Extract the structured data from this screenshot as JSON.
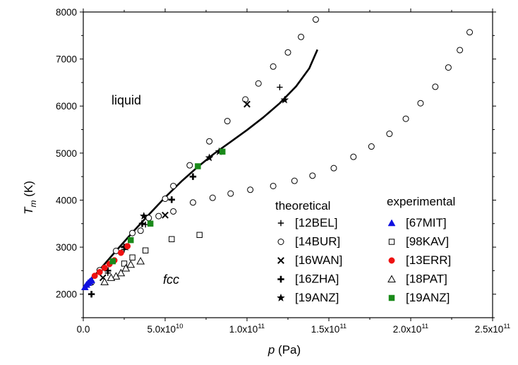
{
  "chart_data": {
    "type": "scatter",
    "xlabel_var": "p",
    "xlabel_unit": " (Pa)",
    "ylabel_var": "T",
    "ylabel_sub": "m",
    "ylabel_unit": " (K)",
    "xlim": [
      0,
      250000000000.0
    ],
    "ylim": [
      1500,
      8000
    ],
    "x_ticks": [
      {
        "v": 0,
        "label": "0.0"
      },
      {
        "v": 50000000000.0,
        "label": "5.0x10",
        "exp": "10"
      },
      {
        "v": 100000000000.0,
        "label": "1.0x10",
        "exp": "11"
      },
      {
        "v": 150000000000.0,
        "label": "1.5x10",
        "exp": "11"
      },
      {
        "v": 200000000000.0,
        "label": "2.0x10",
        "exp": "11"
      },
      {
        "v": 250000000000.0,
        "label": "2.5x10",
        "exp": "11"
      }
    ],
    "y_ticks": [
      2000,
      3000,
      4000,
      5000,
      6000,
      7000,
      8000
    ],
    "region_labels": {
      "liquid": "liquid",
      "fcc": "fcc"
    },
    "legend": {
      "placement": "bottom-right",
      "theoretical_title": "theoretical",
      "experimental_title": "experimental"
    },
    "curve": {
      "name": "",
      "color": "#000000",
      "points": [
        [
          0,
          2120
        ],
        [
          10000000000.0,
          2520
        ],
        [
          20000000000.0,
          2920
        ],
        [
          30000000000.0,
          3310
        ],
        [
          40000000000.0,
          3690
        ],
        [
          50000000000.0,
          4060
        ],
        [
          60000000000.0,
          4400
        ],
        [
          70000000000.0,
          4710
        ],
        [
          80000000000.0,
          4990
        ],
        [
          90000000000.0,
          5240
        ],
        [
          100000000000.0,
          5490
        ],
        [
          110000000000.0,
          5760
        ],
        [
          120000000000.0,
          6060
        ],
        [
          130000000000.0,
          6420
        ],
        [
          138000000000.0,
          6800
        ],
        [
          143000000000.0,
          7200
        ]
      ]
    },
    "series": [
      {
        "name": "[12BEL]",
        "group": "theoretical",
        "marker": "plus-thin",
        "color": "#000000",
        "points": [
          [
            15000000000.0,
            2450
          ],
          [
            25000000000.0,
            2950
          ],
          [
            38000000000.0,
            3480
          ],
          [
            120000000000.0,
            6400
          ]
        ]
      },
      {
        "name": "[14BUR]",
        "group": "theoretical",
        "marker": "circle",
        "color": "#000000",
        "points": [
          [
            10000000000.0,
            2510
          ],
          [
            20000000000.0,
            2920
          ],
          [
            30000000000.0,
            3300
          ],
          [
            40000000000.0,
            3620
          ],
          [
            50000000000.0,
            4030
          ],
          [
            55000000000.0,
            4300
          ],
          [
            65000000000.0,
            4740
          ],
          [
            77000000000.0,
            5250
          ],
          [
            88000000000.0,
            5680
          ],
          [
            99000000000.0,
            6140
          ],
          [
            107000000000.0,
            6480
          ],
          [
            116000000000.0,
            6840
          ],
          [
            125000000000.0,
            7140
          ],
          [
            133000000000.0,
            7470
          ],
          [
            142000000000.0,
            7840
          ],
          [
            35000000000.0,
            3350
          ],
          [
            46000000000.0,
            3660
          ],
          [
            55000000000.0,
            3760
          ],
          [
            67000000000.0,
            3950
          ],
          [
            79000000000.0,
            4050
          ],
          [
            90000000000.0,
            4140
          ],
          [
            102000000000.0,
            4220
          ],
          [
            116000000000.0,
            4300
          ],
          [
            129000000000.0,
            4410
          ],
          [
            140000000000.0,
            4520
          ],
          [
            153000000000.0,
            4680
          ],
          [
            165000000000.0,
            4920
          ],
          [
            176000000000.0,
            5140
          ],
          [
            187000000000.0,
            5410
          ],
          [
            197000000000.0,
            5730
          ],
          [
            206000000000.0,
            6060
          ],
          [
            215000000000.0,
            6410
          ],
          [
            223000000000.0,
            6820
          ],
          [
            230000000000.0,
            7190
          ],
          [
            236000000000.0,
            7570
          ],
          [
            5000000000.0,
            2250
          ]
        ]
      },
      {
        "name": "[16WAN]",
        "group": "theoretical",
        "marker": "cross",
        "color": "#000000",
        "points": [
          [
            12000000000.0,
            2350
          ],
          [
            50000000000.0,
            3680
          ],
          [
            100000000000.0,
            6040
          ]
        ]
      },
      {
        "name": "[16ZHA]",
        "group": "theoretical",
        "marker": "plus-thick",
        "color": "#000000",
        "points": [
          [
            5000000000.0,
            2000
          ],
          [
            15000000000.0,
            2500
          ],
          [
            25000000000.0,
            3000
          ],
          [
            36000000000.0,
            3500
          ],
          [
            54000000000.0,
            4010
          ],
          [
            67000000000.0,
            4500
          ]
        ]
      },
      {
        "name": "[19ANZ]",
        "group": "theoretical",
        "marker": "star",
        "color": "#000000",
        "points": [
          [
            37000000000.0,
            3660
          ],
          [
            77000000000.0,
            4900
          ],
          [
            83000000000.0,
            5030
          ],
          [
            123000000000.0,
            6130
          ],
          [
            26000000000.0,
            3000
          ]
        ]
      },
      {
        "name": "[67MIT]",
        "group": "experimental",
        "marker": "triangle-filled",
        "color": "#1010e0",
        "points": [
          [
            1000000000.0,
            2150
          ],
          [
            2000000000.0,
            2200
          ],
          [
            3000000000.0,
            2240
          ],
          [
            4000000000.0,
            2270
          ],
          [
            5000000000.0,
            2300
          ]
        ]
      },
      {
        "name": "[98KAV]",
        "group": "experimental",
        "marker": "square",
        "color": "#000000",
        "points": [
          [
            25000000000.0,
            2650
          ],
          [
            30000000000.0,
            2780
          ],
          [
            38000000000.0,
            2930
          ],
          [
            54000000000.0,
            3170
          ],
          [
            71000000000.0,
            3260
          ]
        ]
      },
      {
        "name": "[13ERR]",
        "group": "experimental",
        "marker": "circle-filled",
        "color": "#ee1111",
        "points": [
          [
            7000000000.0,
            2390
          ],
          [
            10000000000.0,
            2470
          ],
          [
            13000000000.0,
            2560
          ],
          [
            16000000000.0,
            2640
          ],
          [
            19000000000.0,
            2720
          ],
          [
            23000000000.0,
            2880
          ],
          [
            27000000000.0,
            3020
          ]
        ]
      },
      {
        "name": "[18PAT]",
        "group": "experimental",
        "marker": "triangle",
        "color": "#000000",
        "points": [
          [
            13000000000.0,
            2260
          ],
          [
            20000000000.0,
            2380
          ],
          [
            23000000000.0,
            2450
          ],
          [
            26000000000.0,
            2550
          ],
          [
            29000000000.0,
            2630
          ],
          [
            35000000000.0,
            2700
          ],
          [
            17000000000.0,
            2350
          ]
        ]
      },
      {
        "name": "[19ANZ]",
        "group": "experimental",
        "marker": "square-filled",
        "color": "#1a8a1a",
        "points": [
          [
            18000000000.0,
            2700
          ],
          [
            29000000000.0,
            3150
          ],
          [
            41000000000.0,
            3500
          ],
          [
            70000000000.0,
            4720
          ],
          [
            85000000000.0,
            5030
          ]
        ]
      }
    ]
  }
}
